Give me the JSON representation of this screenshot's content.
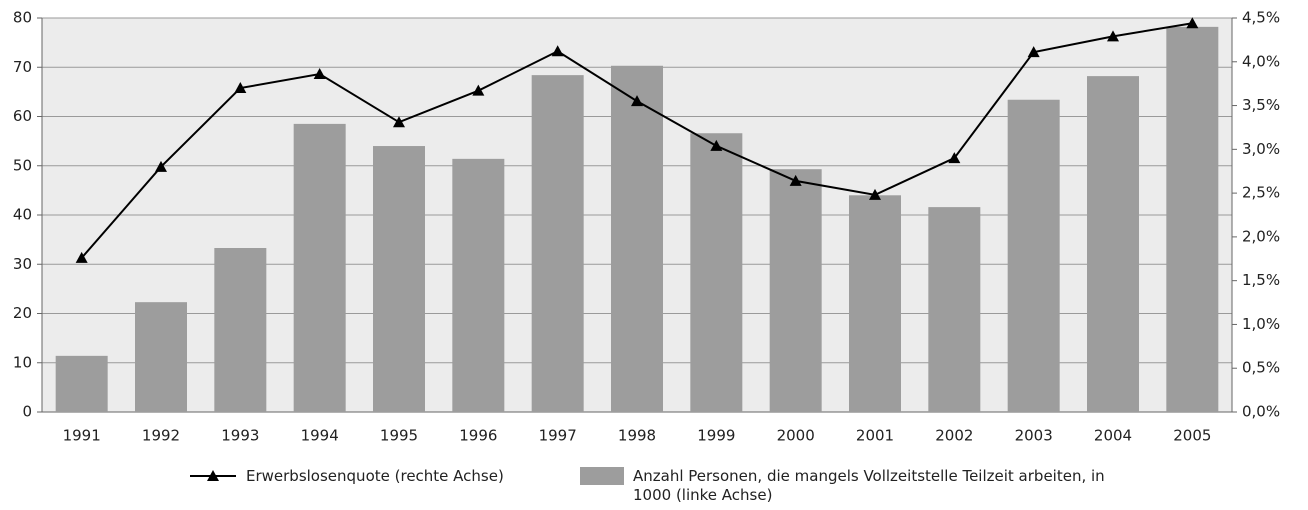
{
  "chart_data": {
    "type": "bar",
    "categories": [
      "1991",
      "1992",
      "1993",
      "1994",
      "1995",
      "1996",
      "1997",
      "1998",
      "1999",
      "2000",
      "2001",
      "2002",
      "2003",
      "2004",
      "2005"
    ],
    "series": [
      {
        "name": "Erwerbslosenquote (rechte Achse)",
        "type": "line",
        "axis": "y2",
        "color": "#000000",
        "values": [
          1.76,
          2.8,
          3.7,
          3.86,
          3.31,
          3.67,
          4.12,
          3.55,
          3.04,
          2.64,
          2.48,
          2.9,
          4.11,
          4.29,
          4.44
        ]
      },
      {
        "name": "Anzahl Personen, die mangels Vollzeitstelle Teilzeit arbeiten, in 1000 (linke Achse)",
        "type": "bar",
        "color": "#9d9d9d",
        "values": [
          11.4,
          22.3,
          33.3,
          58.5,
          54,
          51.4,
          68.4,
          70.3,
          56.6,
          49.3,
          44,
          41.6,
          63.4,
          68.2,
          78.2
        ]
      }
    ],
    "ylim": [
      0,
      80
    ],
    "yticks": [
      0,
      10,
      20,
      30,
      40,
      50,
      60,
      70,
      80
    ],
    "y2lim": [
      0,
      4.5
    ],
    "y2ticks": [
      {
        "value": 0,
        "label": "0,0%"
      },
      {
        "value": 0.5,
        "label": "0,5%"
      },
      {
        "value": 1,
        "label": "1,0%"
      },
      {
        "value": 1.5,
        "label": "1,5%"
      },
      {
        "value": 2,
        "label": "2,0%"
      },
      {
        "value": 2.5,
        "label": "2,5%"
      },
      {
        "value": 3,
        "label": "3,0%"
      },
      {
        "value": 3.5,
        "label": "3,5%"
      },
      {
        "value": 4,
        "label": "4,0%"
      },
      {
        "value": 4.5,
        "label": "4,5%"
      }
    ],
    "grid": true
  }
}
